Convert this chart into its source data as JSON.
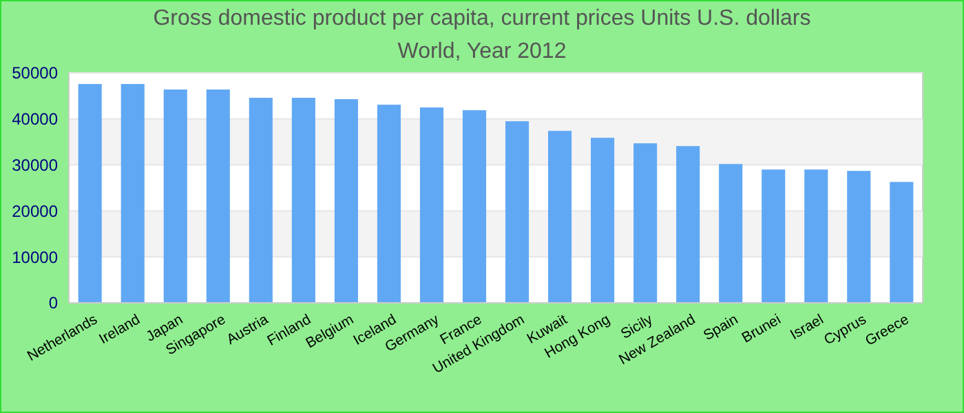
{
  "chart_data": {
    "type": "bar",
    "title": "Gross domestic product per capita, current prices Units U.S. dollars",
    "subtitle": "World, Year 2012",
    "categories": [
      "Netherlands",
      "Ireland",
      "Japan",
      "Singapore",
      "Austria",
      "Finland",
      "Belgium",
      "Iceland",
      "Germany",
      "France",
      "United Kingdom",
      "Kuwait",
      "Hong Kong",
      "Sicily",
      "New Zealand",
      "Spain",
      "Brunei",
      "Israel",
      "Cyprus",
      "Greece"
    ],
    "values": [
      47600,
      47600,
      46400,
      46400,
      44600,
      44600,
      44300,
      43100,
      42500,
      41900,
      39500,
      37400,
      35900,
      34700,
      34100,
      30200,
      29000,
      29000,
      28700,
      26300
    ],
    "color": "#61a8f4",
    "ylim": [
      0,
      50000
    ],
    "yticks": [
      0,
      10000,
      20000,
      30000,
      40000,
      50000
    ],
    "grid": "y"
  }
}
